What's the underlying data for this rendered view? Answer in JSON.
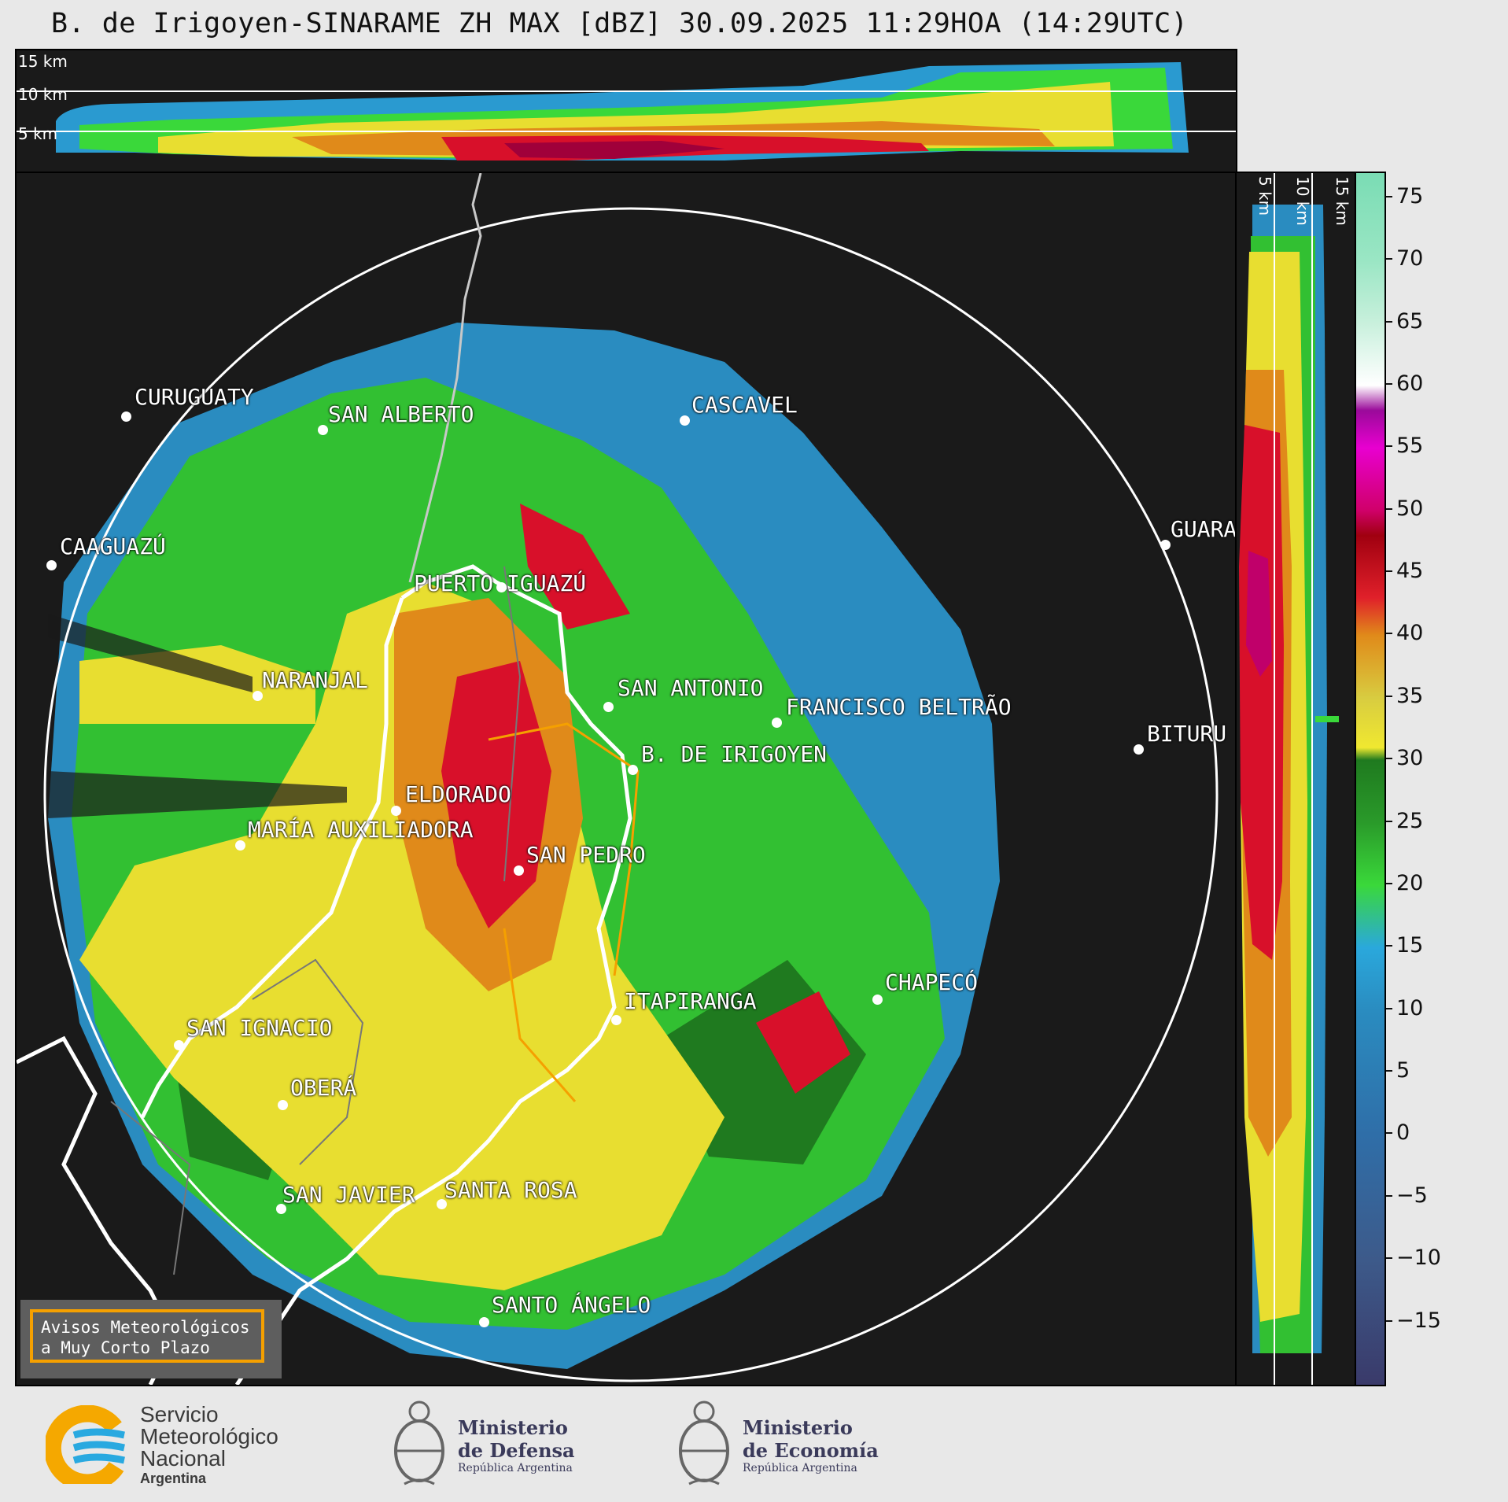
{
  "title": "B. de Irigoyen-SINARAME ZH MAX [dBZ] 30.09.2025 11:29HOA (14:29UTC)",
  "height_labels": [
    "15 km",
    "10 km",
    "5 km"
  ],
  "cities": [
    {
      "name": "CURUGUATY"
    },
    {
      "name": "SAN ALBERTO"
    },
    {
      "name": "CASCAVEL"
    },
    {
      "name": "CAAGUAZÚ"
    },
    {
      "name": "PUERTO IGUAZÚ"
    },
    {
      "name": "GUARA"
    },
    {
      "name": "NARANJAL"
    },
    {
      "name": "SAN ANTONIO"
    },
    {
      "name": "FRANCISCO BELTRÃO"
    },
    {
      "name": "BITURU"
    },
    {
      "name": "B. DE IRIGOYEN"
    },
    {
      "name": "ELDORADO"
    },
    {
      "name": "MARÍA AUXILIADORA"
    },
    {
      "name": "SAN PEDRO"
    },
    {
      "name": "CHAPECÓ"
    },
    {
      "name": "ITAPIRANGA"
    },
    {
      "name": "SAN IGNACIO"
    },
    {
      "name": "OBERÁ"
    },
    {
      "name": "SAN JAVIER"
    },
    {
      "name": "SANTA ROSA"
    },
    {
      "name": "SANTO ÁNGELO"
    }
  ],
  "colorbar": {
    "unit": "dBZ",
    "range": [
      -20,
      77
    ],
    "ticks": [
      "75",
      "70",
      "65",
      "60",
      "55",
      "50",
      "45",
      "40",
      "35",
      "30",
      "25",
      "20",
      "15",
      "10",
      "5",
      "0",
      "−5",
      "−10",
      "−15"
    ],
    "colors": {
      "-20": "#3a3a6a",
      "-10": "#3d5a8a",
      "0": "#2f6ea8",
      "10": "#2a8cc0",
      "15": "#2aa8dc",
      "20": "#3ad83a",
      "25": "#2a9a2a",
      "30": "#1f7a1f",
      "31": "#f0e830",
      "35": "#d8cc40",
      "40": "#e08a1a",
      "43": "#e0202a",
      "48": "#a00010",
      "50": "#d0006a",
      "55": "#e800d0",
      "58": "#9a0a9a",
      "60": "#ffffff",
      "65": "#c8f0dc",
      "70": "#9ae6c4",
      "77": "#7adcb4"
    }
  },
  "avisos": {
    "line1": "Avisos Meteorológicos",
    "line2": "a Muy Corto Plazo"
  },
  "logos": {
    "smn": {
      "line1": "Servicio",
      "line2": "Meteorológico",
      "line3": "Nacional",
      "line4": "Argentina"
    },
    "defensa": {
      "line1": "Ministerio",
      "line2": "de Defensa",
      "line3": "República Argentina"
    },
    "economia": {
      "line1": "Ministerio",
      "line2": "de Economía",
      "line3": "República Argentina"
    }
  }
}
